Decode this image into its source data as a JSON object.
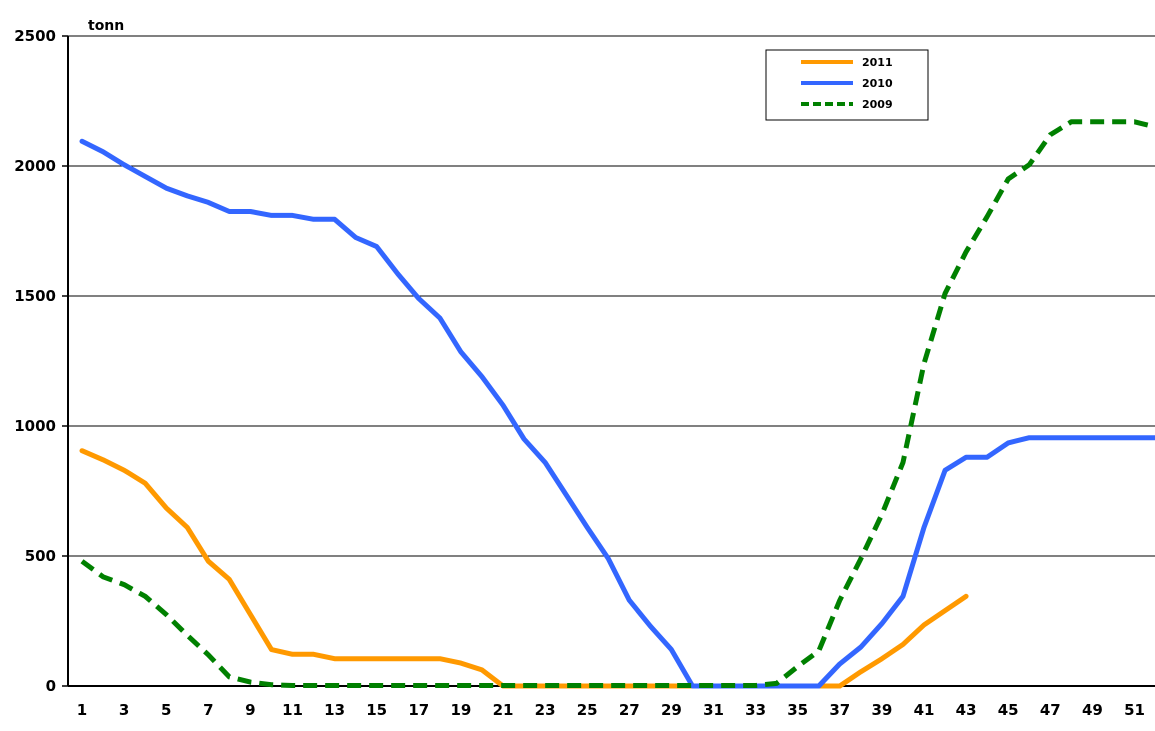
{
  "chart_data": {
    "type": "line",
    "ylabel": "tonn",
    "ylim": [
      0,
      2500
    ],
    "yticks": [
      0,
      500,
      1000,
      1500,
      2000,
      2500
    ],
    "xlim": [
      1,
      52
    ],
    "xticks": [
      1,
      3,
      5,
      7,
      9,
      11,
      13,
      15,
      17,
      19,
      21,
      23,
      25,
      27,
      29,
      31,
      33,
      35,
      37,
      39,
      41,
      43,
      45,
      47,
      49,
      51
    ],
    "grid": "horizontal",
    "legend_position": "top-right",
    "series": [
      {
        "name": "2011",
        "color": "#ff9900",
        "dash": "solid",
        "x": [
          1,
          2,
          3,
          4,
          5,
          6,
          7,
          8,
          9,
          10,
          11,
          12,
          13,
          14,
          15,
          16,
          17,
          18,
          19,
          20,
          21,
          22,
          23,
          24,
          25,
          26,
          27,
          28,
          29,
          30,
          31,
          32,
          33,
          34,
          35,
          36,
          37,
          38,
          39,
          40,
          41,
          42,
          43
        ],
        "values": [
          905,
          870,
          830,
          780,
          685,
          610,
          480,
          410,
          275,
          140,
          122,
          122,
          105,
          105,
          105,
          105,
          105,
          105,
          88,
          62,
          0,
          0,
          0,
          0,
          0,
          0,
          0,
          0,
          0,
          0,
          0,
          0,
          0,
          0,
          0,
          0,
          0,
          55,
          105,
          160,
          235,
          290,
          345
        ]
      },
      {
        "name": "2010",
        "color": "#3366ff",
        "dash": "solid",
        "x": [
          1,
          2,
          3,
          4,
          5,
          6,
          7,
          8,
          9,
          10,
          11,
          12,
          13,
          14,
          15,
          16,
          17,
          18,
          19,
          20,
          21,
          22,
          23,
          24,
          25,
          26,
          27,
          28,
          29,
          30,
          31,
          32,
          33,
          34,
          35,
          36,
          37,
          38,
          39,
          40,
          41,
          42,
          43,
          44,
          45,
          46,
          47,
          48,
          49,
          50,
          51,
          52
        ],
        "values": [
          2095,
          2055,
          2005,
          1960,
          1915,
          1885,
          1860,
          1825,
          1825,
          1810,
          1810,
          1795,
          1795,
          1725,
          1690,
          1585,
          1490,
          1415,
          1285,
          1190,
          1080,
          950,
          860,
          735,
          610,
          490,
          330,
          230,
          140,
          0,
          0,
          0,
          0,
          0,
          0,
          0,
          85,
          150,
          240,
          345,
          610,
          830,
          880,
          880,
          935,
          955,
          955,
          955,
          955,
          955,
          955,
          955
        ]
      },
      {
        "name": "2009",
        "color": "#008000",
        "dash": "dashed",
        "x": [
          1,
          2,
          3,
          4,
          5,
          6,
          7,
          8,
          9,
          10,
          11,
          12,
          13,
          14,
          15,
          16,
          17,
          18,
          19,
          20,
          21,
          22,
          23,
          24,
          25,
          26,
          27,
          28,
          29,
          30,
          31,
          32,
          33,
          34,
          35,
          36,
          37,
          38,
          39,
          40,
          41,
          42,
          43,
          44,
          45,
          46,
          47,
          48,
          49,
          50,
          51,
          52
        ],
        "values": [
          480,
          420,
          390,
          345,
          275,
          195,
          120,
          35,
          15,
          5,
          2,
          2,
          2,
          2,
          2,
          2,
          2,
          2,
          2,
          2,
          2,
          2,
          2,
          2,
          2,
          2,
          2,
          2,
          2,
          2,
          2,
          2,
          2,
          10,
          75,
          135,
          330,
          490,
          660,
          860,
          1240,
          1510,
          1670,
          1805,
          1950,
          2005,
          2120,
          2170,
          2170,
          2170,
          2170,
          2150
        ]
      }
    ]
  }
}
